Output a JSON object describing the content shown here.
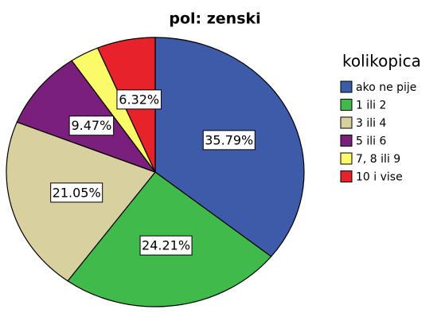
{
  "chart_data": {
    "type": "pie",
    "title": "pol: zenski",
    "legend_title": "kolikopica",
    "categories": [
      "ako ne pije",
      "1 ili 2",
      "3 ili 4",
      "5 ili 6",
      "7, 8 ili 9",
      "10 i vise"
    ],
    "values": [
      35.79,
      24.21,
      21.05,
      9.47,
      3.16,
      6.32
    ],
    "value_labels": [
      "35.79%",
      "24.21%",
      "21.05%",
      "9.47%",
      null,
      "6.32%"
    ],
    "colors": [
      "#3e5ba9",
      "#3fba4b",
      "#d8d09e",
      "#7b1f7c",
      "#fbfb6a",
      "#e8222b"
    ],
    "legend": "right"
  }
}
